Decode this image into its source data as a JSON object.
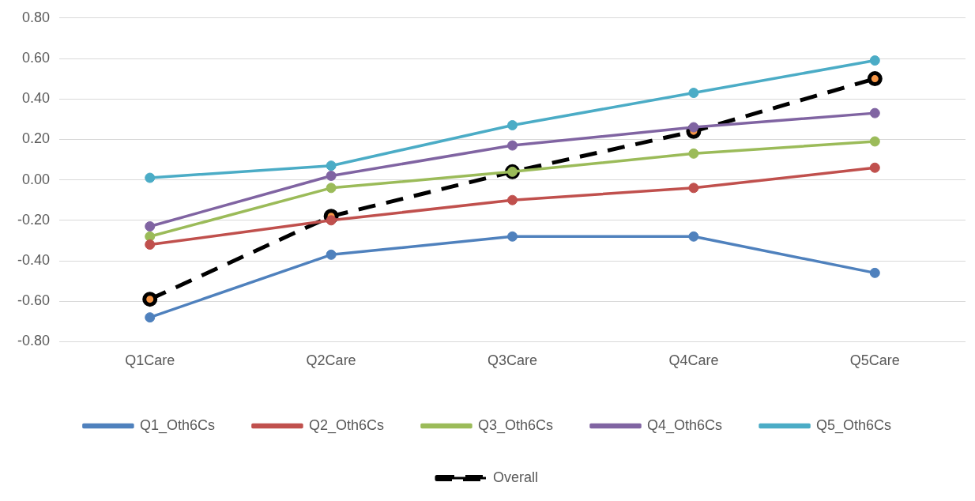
{
  "chart_data": {
    "type": "line",
    "categories": [
      "Q1Care",
      "Q2Care",
      "Q3Care",
      "Q4Care",
      "Q5Care"
    ],
    "series": [
      {
        "name": "Q1_Oth6Cs",
        "color": "#4f81bd",
        "values": [
          -0.68,
          -0.37,
          -0.28,
          -0.28,
          -0.46
        ]
      },
      {
        "name": "Q2_Oth6Cs",
        "color": "#c0504d",
        "values": [
          -0.32,
          -0.2,
          -0.1,
          -0.04,
          0.06
        ]
      },
      {
        "name": "Q3_Oth6Cs",
        "color": "#9bbb59",
        "values": [
          -0.28,
          -0.04,
          0.04,
          0.13,
          0.19
        ]
      },
      {
        "name": "Q4_Oth6Cs",
        "color": "#8064a2",
        "values": [
          -0.23,
          0.02,
          0.17,
          0.26,
          0.33
        ]
      },
      {
        "name": "Q5_Oth6Cs",
        "color": "#4bacc6",
        "values": [
          0.01,
          0.07,
          0.27,
          0.43,
          0.59
        ]
      },
      {
        "name": "Overall",
        "color": "#000000",
        "line_style": "dashed",
        "values": [
          -0.59,
          -0.18,
          0.04,
          0.24,
          0.5
        ]
      }
    ],
    "ylim": [
      -0.8,
      0.8
    ],
    "yticks": [
      {
        "value": -0.8,
        "label": "-0.80"
      },
      {
        "value": -0.6,
        "label": "-0.60"
      },
      {
        "value": -0.4,
        "label": "-0.40"
      },
      {
        "value": -0.2,
        "label": "-0.20"
      },
      {
        "value": 0,
        "label": "0.00"
      },
      {
        "value": 0.2,
        "label": "0.20"
      },
      {
        "value": 0.4,
        "label": "0.40"
      },
      {
        "value": 0.6,
        "label": "0.60"
      },
      {
        "value": 0.8,
        "label": "0.80"
      }
    ],
    "grid": "y",
    "legend": "bottom",
    "marker": "circle",
    "line_style": "solid"
  }
}
